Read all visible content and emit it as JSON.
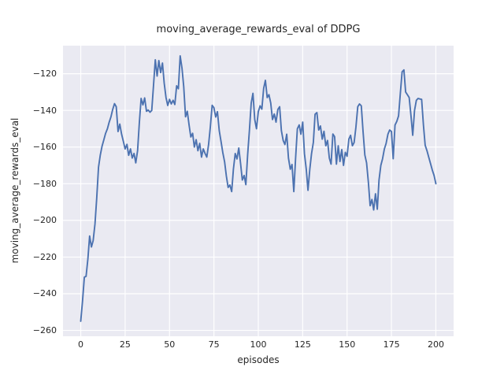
{
  "chart_data": {
    "type": "line",
    "title": "moving_average_rewards_eval of DDPG",
    "xlabel": "episodes",
    "ylabel": "moving_average_rewards_eval",
    "plot_bg_color": "#eaeaf2",
    "grid_color": "#ffffff",
    "text_color": "#262626",
    "grid": true,
    "legend": false,
    "xlim": [
      -10,
      210
    ],
    "ylim": [
      -263.2,
      -104.7
    ],
    "xticks": {
      "values": [
        0,
        25,
        50,
        75,
        100,
        125,
        150,
        175,
        200
      ],
      "labels": [
        "0",
        "25",
        "50",
        "75",
        "100",
        "125",
        "150",
        "175",
        "200"
      ]
    },
    "yticks": {
      "values": [
        -260,
        -240,
        -220,
        -200,
        -180,
        -160,
        -140,
        -120
      ],
      "labels": [
        "−260",
        "−240",
        "−220",
        "−200",
        "−180",
        "−160",
        "−140",
        "−120"
      ]
    },
    "series": [
      {
        "name": "moving_average_rewards_eval",
        "color": "#4c72b0",
        "x": [
          0,
          1,
          2,
          3,
          4,
          5,
          6,
          7,
          8,
          9,
          10,
          11,
          12,
          13,
          14,
          15,
          16,
          17,
          18,
          19,
          20,
          21,
          22,
          23,
          24,
          25,
          26,
          27,
          28,
          29,
          30,
          31,
          32,
          33,
          34,
          35,
          36,
          37,
          38,
          39,
          40,
          41,
          42,
          43,
          44,
          45,
          46,
          47,
          48,
          49,
          50,
          51,
          52,
          53,
          54,
          55,
          56,
          57,
          58,
          59,
          60,
          61,
          62,
          63,
          64,
          65,
          66,
          67,
          68,
          69,
          70,
          71,
          72,
          73,
          74,
          75,
          76,
          77,
          78,
          79,
          80,
          81,
          82,
          83,
          84,
          85,
          86,
          87,
          88,
          89,
          90,
          91,
          92,
          93,
          94,
          95,
          96,
          97,
          98,
          99,
          100,
          101,
          102,
          103,
          104,
          105,
          106,
          107,
          108,
          109,
          110,
          111,
          112,
          113,
          114,
          115,
          116,
          117,
          118,
          119,
          120,
          121,
          122,
          123,
          124,
          125,
          126,
          127,
          128,
          129,
          130,
          131,
          132,
          133,
          134,
          135,
          136,
          137,
          138,
          139,
          140,
          141,
          142,
          143,
          144,
          145,
          146,
          147,
          148,
          149,
          150,
          151,
          152,
          153,
          154,
          155,
          156,
          157,
          158,
          159,
          160,
          161,
          162,
          163,
          164,
          165,
          166,
          167,
          168,
          169,
          170,
          171,
          172,
          173,
          174,
          175,
          176,
          177,
          178,
          179,
          180,
          181,
          182,
          183,
          184,
          185,
          186,
          187,
          188,
          189,
          190,
          191,
          192,
          193,
          194,
          195,
          196,
          197,
          198,
          199,
          200
        ],
        "y": [
          -255.0,
          -244.0,
          -231.0,
          -230.5,
          -221.0,
          -208.5,
          -214.5,
          -211.0,
          -202.0,
          -188.0,
          -171.0,
          -164.5,
          -159.5,
          -156.0,
          -152.5,
          -150.0,
          -146.5,
          -143.5,
          -139.5,
          -136.3,
          -138.0,
          -151.5,
          -147.5,
          -153.0,
          -157.0,
          -161.0,
          -158.5,
          -164.5,
          -161.0,
          -166.0,
          -163.5,
          -168.6,
          -162.0,
          -147.0,
          -133.5,
          -137.0,
          -133.2,
          -140.5,
          -139.8,
          -141.0,
          -140.0,
          -126.0,
          -112.4,
          -121.3,
          -112.8,
          -119.4,
          -114.2,
          -125.1,
          -133.0,
          -137.3,
          -134.0,
          -136.5,
          -134.5,
          -136.8,
          -126.6,
          -128.2,
          -110.3,
          -117.0,
          -127.0,
          -143.5,
          -140.5,
          -148.0,
          -154.5,
          -152.5,
          -160.0,
          -156.0,
          -162.0,
          -158.0,
          -165.5,
          -161.0,
          -163.5,
          -165.5,
          -158.5,
          -149.0,
          -137.2,
          -138.5,
          -143.6,
          -140.7,
          -151.0,
          -157.0,
          -163.0,
          -168.0,
          -175.7,
          -182.0,
          -180.7,
          -184.3,
          -172.0,
          -163.5,
          -166.5,
          -160.5,
          -169.0,
          -178.0,
          -175.5,
          -180.5,
          -164.0,
          -151.0,
          -136.0,
          -130.7,
          -145.0,
          -150.0,
          -140.7,
          -137.5,
          -139.3,
          -128.0,
          -123.6,
          -133.0,
          -131.4,
          -136.0,
          -145.0,
          -142.0,
          -146.4,
          -139.5,
          -138.0,
          -151.0,
          -156.4,
          -158.6,
          -153.0,
          -166.0,
          -172.1,
          -169.5,
          -184.3,
          -166.5,
          -150.0,
          -147.9,
          -153.0,
          -146.4,
          -163.6,
          -172.1,
          -183.6,
          -172.1,
          -163.6,
          -157.5,
          -142.1,
          -141.2,
          -150.7,
          -148.5,
          -155.7,
          -151.4,
          -159.3,
          -156.4,
          -166.0,
          -169.3,
          -152.9,
          -154.3,
          -169.3,
          -159.3,
          -167.9,
          -161.4,
          -170.0,
          -162.9,
          -165.0,
          -155.7,
          -153.6,
          -159.3,
          -157.5,
          -149.0,
          -138.0,
          -136.5,
          -137.5,
          -151.4,
          -164.3,
          -168.6,
          -179.3,
          -192.0,
          -188.6,
          -194.3,
          -185.5,
          -193.9,
          -178.0,
          -170.0,
          -166.4,
          -161.0,
          -158.0,
          -153.0,
          -150.7,
          -151.5,
          -166.4,
          -148.0,
          -146.0,
          -143.0,
          -130.5,
          -119.0,
          -117.9,
          -130.0,
          -131.5,
          -133.0,
          -143.0,
          -153.6,
          -140.0,
          -134.5,
          -133.5,
          -133.8,
          -134.0,
          -148.0,
          -159.0,
          -162.0,
          -165.5,
          -169.0,
          -172.5,
          -175.5,
          -180.0
        ]
      }
    ]
  }
}
